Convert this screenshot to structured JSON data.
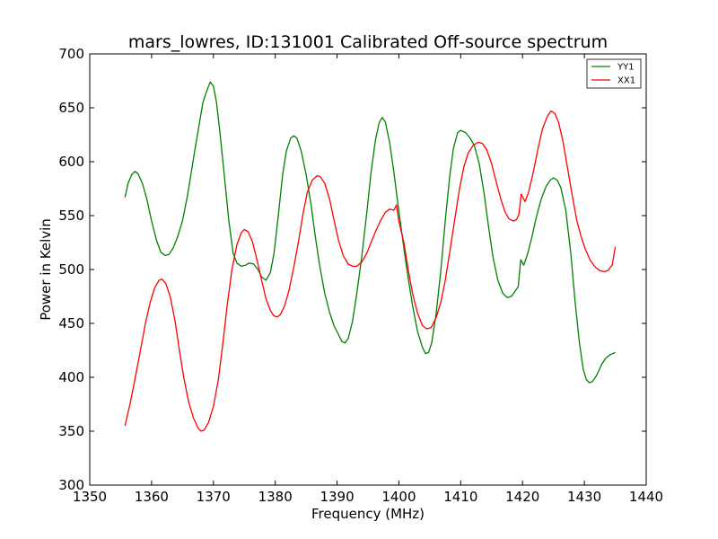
{
  "chart_data": {
    "type": "line",
    "title": "mars_lowres, ID:131001 Calibrated Off-source spectrum",
    "xlabel": "Frequency (MHz)",
    "ylabel": "Power in Kelvin",
    "xlim": [
      1350,
      1440
    ],
    "ylim": [
      300,
      700
    ],
    "xticks": [
      1350,
      1360,
      1370,
      1380,
      1390,
      1400,
      1410,
      1420,
      1430,
      1440
    ],
    "yticks": [
      300,
      350,
      400,
      450,
      500,
      550,
      600,
      650,
      700
    ],
    "grid": false,
    "legend_position": "top-right",
    "series": [
      {
        "name": "YY1",
        "color": "#008000",
        "points": [
          [
            1355.7,
            567
          ],
          [
            1356.2,
            580
          ],
          [
            1356.8,
            588
          ],
          [
            1357.3,
            591
          ],
          [
            1357.8,
            589
          ],
          [
            1358.5,
            580
          ],
          [
            1359.2,
            566
          ],
          [
            1360.0,
            545
          ],
          [
            1360.8,
            527
          ],
          [
            1361.5,
            516
          ],
          [
            1362.2,
            513
          ],
          [
            1362.8,
            514
          ],
          [
            1363.5,
            520
          ],
          [
            1364.2,
            530
          ],
          [
            1365.0,
            545
          ],
          [
            1365.8,
            568
          ],
          [
            1366.7,
            600
          ],
          [
            1367.5,
            628
          ],
          [
            1368.3,
            655
          ],
          [
            1369.0,
            667
          ],
          [
            1369.5,
            674
          ],
          [
            1370.0,
            670
          ],
          [
            1370.5,
            655
          ],
          [
            1371.0,
            630
          ],
          [
            1371.8,
            585
          ],
          [
            1372.5,
            545
          ],
          [
            1373.2,
            515
          ],
          [
            1373.8,
            506
          ],
          [
            1374.5,
            503
          ],
          [
            1375.2,
            504
          ],
          [
            1375.8,
            506
          ],
          [
            1376.5,
            505
          ],
          [
            1377.2,
            500
          ],
          [
            1377.8,
            493
          ],
          [
            1378.5,
            490
          ],
          [
            1379.2,
            497
          ],
          [
            1379.8,
            515
          ],
          [
            1380.5,
            550
          ],
          [
            1381.2,
            588
          ],
          [
            1381.8,
            610
          ],
          [
            1382.5,
            622
          ],
          [
            1383.0,
            624
          ],
          [
            1383.5,
            622
          ],
          [
            1384.2,
            610
          ],
          [
            1385.0,
            588
          ],
          [
            1385.8,
            560
          ],
          [
            1386.5,
            530
          ],
          [
            1387.2,
            503
          ],
          [
            1388.0,
            478
          ],
          [
            1388.8,
            460
          ],
          [
            1389.5,
            448
          ],
          [
            1390.2,
            440
          ],
          [
            1390.8,
            433
          ],
          [
            1391.3,
            432
          ],
          [
            1391.8,
            436
          ],
          [
            1392.5,
            452
          ],
          [
            1393.2,
            478
          ],
          [
            1394.0,
            512
          ],
          [
            1394.8,
            552
          ],
          [
            1395.5,
            590
          ],
          [
            1396.2,
            620
          ],
          [
            1396.8,
            636
          ],
          [
            1397.3,
            641
          ],
          [
            1397.8,
            637
          ],
          [
            1398.5,
            618
          ],
          [
            1399.2,
            590
          ],
          [
            1400.0,
            554
          ],
          [
            1400.8,
            520
          ],
          [
            1401.5,
            492
          ],
          [
            1402.2,
            467
          ],
          [
            1403.0,
            443
          ],
          [
            1403.8,
            428
          ],
          [
            1404.3,
            422
          ],
          [
            1404.8,
            423
          ],
          [
            1405.3,
            432
          ],
          [
            1406.0,
            458
          ],
          [
            1406.8,
            500
          ],
          [
            1407.5,
            545
          ],
          [
            1408.2,
            585
          ],
          [
            1408.8,
            612
          ],
          [
            1409.5,
            627
          ],
          [
            1410.0,
            629
          ],
          [
            1410.8,
            627
          ],
          [
            1411.5,
            622
          ],
          [
            1412.2,
            615
          ],
          [
            1413.0,
            598
          ],
          [
            1413.8,
            570
          ],
          [
            1414.5,
            540
          ],
          [
            1415.2,
            512
          ],
          [
            1416.0,
            490
          ],
          [
            1416.8,
            478
          ],
          [
            1417.5,
            474
          ],
          [
            1418.2,
            475
          ],
          [
            1418.8,
            480
          ],
          [
            1419.3,
            484
          ],
          [
            1419.7,
            509
          ],
          [
            1420.2,
            504
          ],
          [
            1420.8,
            514
          ],
          [
            1421.5,
            530
          ],
          [
            1422.2,
            548
          ],
          [
            1423.0,
            565
          ],
          [
            1423.8,
            577
          ],
          [
            1424.5,
            583
          ],
          [
            1425.0,
            585
          ],
          [
            1425.6,
            583
          ],
          [
            1426.2,
            576
          ],
          [
            1427.0,
            555
          ],
          [
            1427.8,
            515
          ],
          [
            1428.5,
            470
          ],
          [
            1429.2,
            432
          ],
          [
            1429.8,
            408
          ],
          [
            1430.3,
            398
          ],
          [
            1430.8,
            395
          ],
          [
            1431.3,
            396
          ],
          [
            1432.0,
            402
          ],
          [
            1432.8,
            412
          ],
          [
            1433.5,
            418
          ],
          [
            1434.2,
            421
          ],
          [
            1435.0,
            423
          ]
        ]
      },
      {
        "name": "XX1",
        "color": "#ff0000",
        "points": [
          [
            1355.7,
            355
          ],
          [
            1356.5,
            375
          ],
          [
            1357.3,
            398
          ],
          [
            1358.2,
            425
          ],
          [
            1359.0,
            450
          ],
          [
            1359.8,
            470
          ],
          [
            1360.5,
            483
          ],
          [
            1361.2,
            490
          ],
          [
            1361.7,
            491
          ],
          [
            1362.3,
            487
          ],
          [
            1363.0,
            475
          ],
          [
            1363.8,
            452
          ],
          [
            1364.5,
            425
          ],
          [
            1365.2,
            400
          ],
          [
            1366.0,
            377
          ],
          [
            1366.8,
            362
          ],
          [
            1367.5,
            353
          ],
          [
            1368.0,
            350
          ],
          [
            1368.5,
            351
          ],
          [
            1369.2,
            358
          ],
          [
            1370.0,
            373
          ],
          [
            1370.8,
            398
          ],
          [
            1371.5,
            430
          ],
          [
            1372.2,
            465
          ],
          [
            1373.0,
            500
          ],
          [
            1373.8,
            523
          ],
          [
            1374.5,
            534
          ],
          [
            1375.0,
            537
          ],
          [
            1375.6,
            535
          ],
          [
            1376.3,
            526
          ],
          [
            1377.0,
            510
          ],
          [
            1377.8,
            490
          ],
          [
            1378.5,
            473
          ],
          [
            1379.2,
            462
          ],
          [
            1379.8,
            457
          ],
          [
            1380.3,
            456
          ],
          [
            1380.8,
            458
          ],
          [
            1381.5,
            466
          ],
          [
            1382.2,
            480
          ],
          [
            1383.0,
            502
          ],
          [
            1383.8,
            527
          ],
          [
            1384.5,
            552
          ],
          [
            1385.2,
            572
          ],
          [
            1386.0,
            583
          ],
          [
            1386.8,
            587
          ],
          [
            1387.3,
            586
          ],
          [
            1388.0,
            580
          ],
          [
            1388.8,
            565
          ],
          [
            1389.5,
            546
          ],
          [
            1390.2,
            528
          ],
          [
            1391.0,
            513
          ],
          [
            1391.8,
            505
          ],
          [
            1392.5,
            503
          ],
          [
            1393.2,
            503
          ],
          [
            1394.0,
            507
          ],
          [
            1394.8,
            515
          ],
          [
            1395.5,
            525
          ],
          [
            1396.2,
            535
          ],
          [
            1397.0,
            545
          ],
          [
            1397.8,
            553
          ],
          [
            1398.5,
            556
          ],
          [
            1399.2,
            555
          ],
          [
            1399.6,
            560
          ],
          [
            1400.0,
            545
          ],
          [
            1400.8,
            525
          ],
          [
            1401.5,
            500
          ],
          [
            1402.2,
            478
          ],
          [
            1403.0,
            460
          ],
          [
            1403.8,
            448
          ],
          [
            1404.5,
            445
          ],
          [
            1405.2,
            446
          ],
          [
            1406.0,
            455
          ],
          [
            1406.8,
            470
          ],
          [
            1407.5,
            490
          ],
          [
            1408.2,
            515
          ],
          [
            1409.0,
            545
          ],
          [
            1409.8,
            575
          ],
          [
            1410.5,
            595
          ],
          [
            1411.2,
            608
          ],
          [
            1412.0,
            615
          ],
          [
            1412.8,
            618
          ],
          [
            1413.5,
            617
          ],
          [
            1414.2,
            611
          ],
          [
            1415.0,
            598
          ],
          [
            1415.8,
            580
          ],
          [
            1416.5,
            565
          ],
          [
            1417.2,
            553
          ],
          [
            1417.8,
            547
          ],
          [
            1418.5,
            545
          ],
          [
            1419.0,
            546
          ],
          [
            1419.4,
            551
          ],
          [
            1419.8,
            570
          ],
          [
            1420.4,
            563
          ],
          [
            1421.0,
            572
          ],
          [
            1421.8,
            592
          ],
          [
            1422.5,
            612
          ],
          [
            1423.2,
            630
          ],
          [
            1424.0,
            642
          ],
          [
            1424.6,
            647
          ],
          [
            1425.2,
            645
          ],
          [
            1425.8,
            637
          ],
          [
            1426.5,
            620
          ],
          [
            1427.2,
            597
          ],
          [
            1428.0,
            570
          ],
          [
            1428.8,
            545
          ],
          [
            1429.5,
            530
          ],
          [
            1430.2,
            518
          ],
          [
            1431.0,
            508
          ],
          [
            1431.8,
            502
          ],
          [
            1432.5,
            499
          ],
          [
            1433.2,
            498
          ],
          [
            1433.8,
            499
          ],
          [
            1434.5,
            504
          ],
          [
            1435.0,
            521
          ]
        ]
      }
    ]
  }
}
